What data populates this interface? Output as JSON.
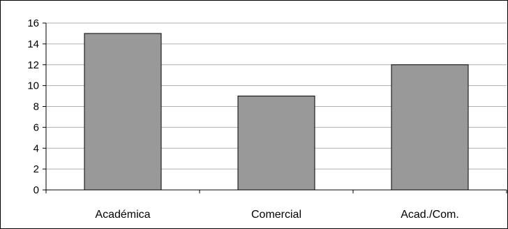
{
  "chart_data": {
    "type": "bar",
    "title": "",
    "xlabel": "",
    "ylabel": "",
    "categories": [
      "Académica",
      "Comercial",
      "Acad./Com."
    ],
    "values": [
      15,
      9,
      12
    ],
    "ylim": [
      0,
      16
    ],
    "yticks": [
      0,
      2,
      4,
      6,
      8,
      10,
      12,
      14,
      16
    ],
    "grid": true,
    "legend": "none",
    "bar_color": "#999999",
    "bar_edge_color": "#000000",
    "grid_color": "#b0b0b0"
  }
}
